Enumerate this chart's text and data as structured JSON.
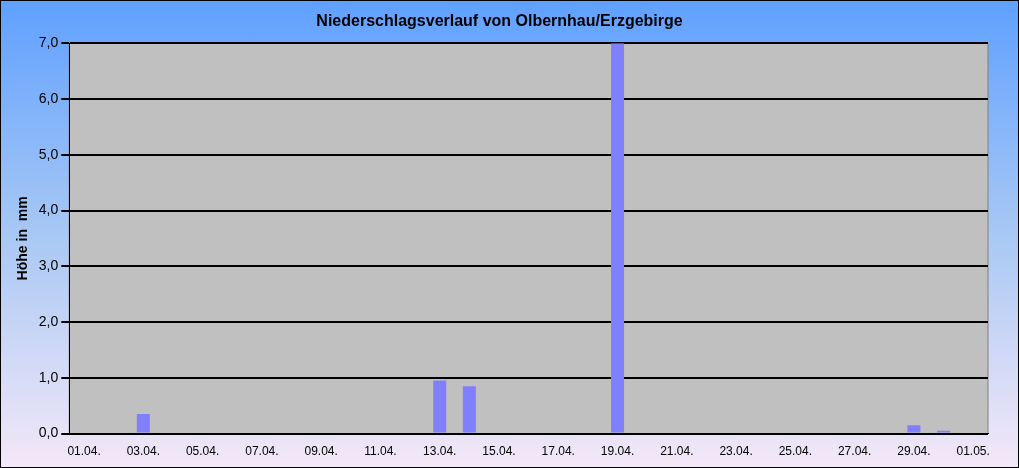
{
  "chart_data": {
    "type": "bar",
    "title": "Niederschlagsverlauf von Olbernhau/Erzgebirge",
    "ylabel": "Höhe in  mm",
    "categories": [
      "01.04.",
      null,
      "03.04.",
      null,
      "05.04.",
      null,
      "07.04.",
      null,
      "09.04.",
      null,
      "11.04.",
      null,
      "13.04.",
      null,
      "15.04.",
      null,
      "17.04.",
      null,
      "19.04.",
      null,
      "21.04.",
      null,
      "23.04.",
      null,
      "25.04.",
      null,
      "27.04.",
      null,
      "29.04.",
      null,
      "01.05."
    ],
    "values": [
      0,
      0,
      0.35,
      0,
      0,
      0,
      0,
      0,
      0,
      0,
      0,
      0,
      0.95,
      0.85,
      0,
      0,
      0,
      0,
      7.0,
      0,
      0,
      0,
      0,
      0,
      0,
      0,
      0,
      0,
      0.15,
      0.05,
      null
    ],
    "color": "#8080ff",
    "ylim": [
      0,
      7
    ],
    "yticks": [
      {
        "value": 0,
        "label": "0,0"
      },
      {
        "value": 1,
        "label": "1,0"
      },
      {
        "value": 2,
        "label": "2,0"
      },
      {
        "value": 3,
        "label": "3,0"
      },
      {
        "value": 4,
        "label": "4,0"
      },
      {
        "value": 5,
        "label": "5,0"
      },
      {
        "value": 6,
        "label": "6,0"
      },
      {
        "value": 7,
        "label": "7,0"
      }
    ],
    "grid": "y",
    "legend": false
  }
}
